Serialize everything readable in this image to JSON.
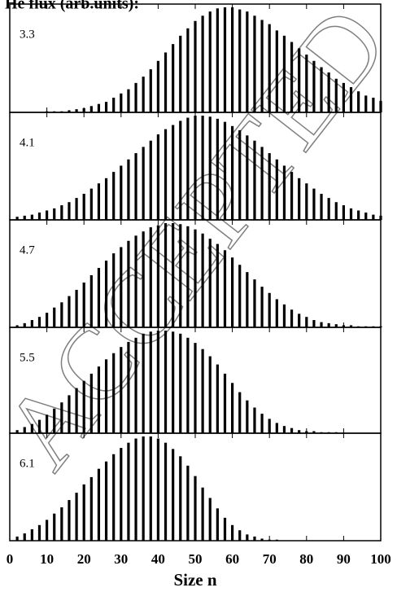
{
  "title": "He flux (arb.units):",
  "watermark": "ACCEPTED",
  "chart_data": [
    {
      "type": "bar",
      "label": "3.3",
      "color": "#000000",
      "x": [
        2,
        4,
        6,
        8,
        10,
        12,
        14,
        16,
        18,
        20,
        22,
        24,
        26,
        28,
        30,
        32,
        34,
        36,
        38,
        40,
        42,
        44,
        46,
        48,
        50,
        52,
        54,
        56,
        58,
        60,
        62,
        64,
        66,
        68,
        70,
        72,
        74,
        76,
        78,
        80,
        82,
        84,
        86,
        88,
        90,
        92,
        94,
        96,
        98,
        100
      ],
      "values": [
        0,
        0,
        0,
        0,
        1,
        1,
        1,
        2,
        3,
        4,
        6,
        8,
        10,
        14,
        18,
        22,
        28,
        34,
        41,
        49,
        57,
        65,
        73,
        80,
        87,
        92,
        96,
        99,
        100,
        100,
        98,
        96,
        92,
        88,
        84,
        78,
        73,
        67,
        61,
        55,
        49,
        43,
        38,
        32,
        28,
        24,
        20,
        16,
        14,
        11
      ],
      "xlim": [
        0,
        100
      ],
      "ylim": [
        0,
        100
      ],
      "xticks": [
        0,
        10,
        20,
        30,
        40,
        50,
        60,
        70,
        80,
        90,
        100
      ]
    },
    {
      "type": "bar",
      "label": "4.1",
      "color": "#000000",
      "x": [
        2,
        4,
        6,
        8,
        10,
        12,
        14,
        16,
        18,
        20,
        22,
        24,
        26,
        28,
        30,
        32,
        34,
        36,
        38,
        40,
        42,
        44,
        46,
        48,
        50,
        52,
        54,
        56,
        58,
        60,
        62,
        64,
        66,
        68,
        70,
        72,
        74,
        76,
        78,
        80,
        82,
        84,
        86,
        88,
        90,
        92,
        94,
        96,
        98,
        100
      ],
      "values": [
        3,
        4,
        5,
        7,
        9,
        11,
        14,
        17,
        21,
        25,
        30,
        35,
        40,
        46,
        52,
        58,
        64,
        70,
        76,
        82,
        87,
        91,
        95,
        98,
        100,
        100,
        99,
        97,
        94,
        90,
        86,
        81,
        76,
        70,
        64,
        58,
        52,
        46,
        40,
        35,
        30,
        25,
        21,
        17,
        14,
        11,
        9,
        7,
        5,
        4
      ],
      "xlim": [
        0,
        100
      ],
      "ylim": [
        0,
        100
      ],
      "xticks": [
        0,
        10,
        20,
        30,
        40,
        50,
        60,
        70,
        80,
        90,
        100
      ]
    },
    {
      "type": "bar",
      "label": "4.7",
      "color": "#000000",
      "x": [
        2,
        4,
        6,
        8,
        10,
        12,
        14,
        16,
        18,
        20,
        22,
        24,
        26,
        28,
        30,
        32,
        34,
        36,
        38,
        40,
        42,
        44,
        46,
        48,
        50,
        52,
        54,
        56,
        58,
        60,
        62,
        64,
        66,
        68,
        70,
        72,
        74,
        76,
        78,
        80,
        82,
        84,
        86,
        88,
        90,
        92,
        94,
        96,
        98,
        100
      ],
      "values": [
        2,
        4,
        7,
        10,
        14,
        19,
        24,
        30,
        36,
        43,
        50,
        57,
        64,
        71,
        77,
        83,
        88,
        92,
        96,
        98,
        100,
        100,
        99,
        97,
        94,
        90,
        85,
        80,
        74,
        67,
        60,
        53,
        46,
        39,
        33,
        27,
        22,
        17,
        13,
        10,
        7,
        5,
        4,
        3,
        2,
        2,
        1,
        1,
        1,
        1
      ],
      "xlim": [
        0,
        100
      ],
      "ylim": [
        0,
        100
      ],
      "xticks": [
        0,
        10,
        20,
        30,
        40,
        50,
        60,
        70,
        80,
        90,
        100
      ]
    },
    {
      "type": "bar",
      "label": "5.5",
      "color": "#000000",
      "x": [
        2,
        4,
        6,
        8,
        10,
        12,
        14,
        16,
        18,
        20,
        22,
        24,
        26,
        28,
        30,
        32,
        34,
        36,
        38,
        40,
        42,
        44,
        46,
        48,
        50,
        52,
        54,
        56,
        58,
        60,
        62,
        64,
        66,
        68,
        70,
        72,
        74,
        76,
        78,
        80,
        82,
        84,
        86,
        88,
        90,
        92,
        94,
        96,
        98,
        100
      ],
      "values": [
        3,
        6,
        9,
        13,
        18,
        24,
        30,
        37,
        44,
        51,
        58,
        65,
        72,
        78,
        84,
        89,
        93,
        97,
        99,
        100,
        100,
        99,
        97,
        93,
        88,
        82,
        75,
        67,
        58,
        49,
        40,
        32,
        25,
        19,
        14,
        10,
        7,
        5,
        3,
        2,
        2,
        1,
        1,
        1,
        0,
        0,
        0,
        0,
        0,
        0
      ],
      "xlim": [
        0,
        100
      ],
      "ylim": [
        0,
        100
      ],
      "xticks": [
        0,
        10,
        20,
        30,
        40,
        50,
        60,
        70,
        80,
        90,
        100
      ]
    },
    {
      "type": "bar",
      "label": "6.1",
      "color": "#000000",
      "xlabel": "Size n",
      "x": [
        2,
        4,
        6,
        8,
        10,
        12,
        14,
        16,
        18,
        20,
        22,
        24,
        26,
        28,
        30,
        32,
        34,
        36,
        38,
        40,
        42,
        44,
        46,
        48,
        50,
        52,
        54,
        56,
        58,
        60,
        62,
        64,
        66,
        68,
        70,
        72,
        74,
        76,
        78,
        80,
        82,
        84,
        86,
        88,
        90,
        92,
        94,
        96,
        98,
        100
      ],
      "values": [
        4,
        7,
        11,
        15,
        20,
        26,
        32,
        39,
        46,
        54,
        61,
        69,
        76,
        83,
        89,
        94,
        98,
        100,
        100,
        98,
        94,
        88,
        81,
        72,
        62,
        51,
        41,
        31,
        22,
        15,
        10,
        6,
        4,
        2,
        1,
        1,
        0,
        0,
        0,
        0,
        0,
        0,
        0,
        0,
        0,
        0,
        0,
        0,
        0,
        0
      ],
      "xlim": [
        0,
        100
      ],
      "ylim": [
        0,
        100
      ],
      "xticks": [
        0,
        10,
        20,
        30,
        40,
        50,
        60,
        70,
        80,
        90,
        100
      ]
    }
  ]
}
